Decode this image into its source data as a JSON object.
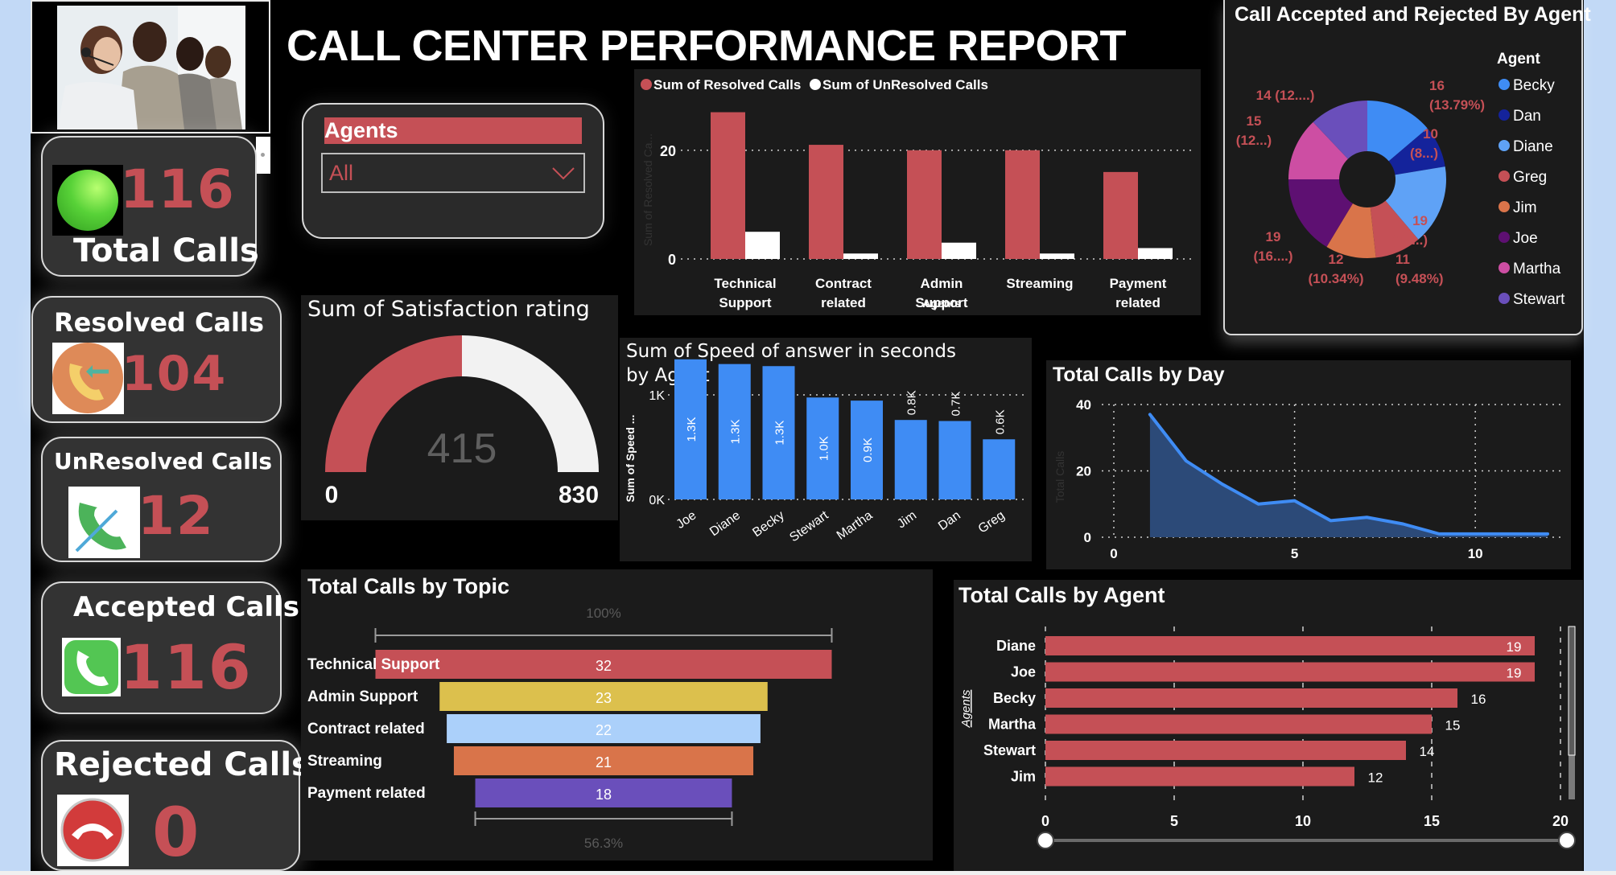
{
  "header": {
    "title": "CALL CENTER PERFORMANCE REPORT",
    "photo": "call-center-agents-photo"
  },
  "kpis": {
    "total": {
      "label": "Total Calls",
      "value": "116",
      "icon": "green-status-orb-icon"
    },
    "resolved": {
      "label": "Resolved Calls",
      "value": "104",
      "icon": "incoming-call-icon"
    },
    "unresolved": {
      "label": "UnResolved Calls",
      "value": "12",
      "icon": "missed-call-icon"
    },
    "accepted": {
      "label": "Accepted Calls",
      "value": "116",
      "icon": "phone-accept-icon"
    },
    "rejected": {
      "label": "Rejected Calls",
      "value": "0",
      "icon": "phone-hangup-icon"
    }
  },
  "slicer": {
    "title": "Agents",
    "selected": "All"
  },
  "colors": {
    "accent_red": "#c55056",
    "blue": "#3f8cf4",
    "bg_panel": "#1b1b1b"
  },
  "chart_data": [
    {
      "id": "resolved_by_topic",
      "type": "bar",
      "title": "",
      "legend": [
        "Sum of Resolved Calls",
        "Sum of UnResolved Calls"
      ],
      "legend_position": "top-left",
      "categories": [
        "Technical Support",
        "Contract related",
        "Admin Support",
        "Streaming",
        "Payment related"
      ],
      "category_lines": [
        [
          "Technical",
          "Support"
        ],
        [
          "Contract",
          "related"
        ],
        [
          "Admin",
          "Support"
        ],
        [
          "Streaming"
        ],
        [
          "Payment",
          "related"
        ]
      ],
      "xlabel": "Agents",
      "ylabel": "Sum of Resolved Ca...",
      "yticks": [
        "0",
        "20"
      ],
      "ylim": [
        0,
        29
      ],
      "series": [
        {
          "name": "Sum of Resolved Calls",
          "color": "#c55056",
          "values": [
            27,
            21,
            20,
            20,
            16
          ]
        },
        {
          "name": "Sum of UnResolved Calls",
          "color": "#ffffff",
          "values": [
            5,
            1,
            3,
            1,
            2
          ]
        }
      ]
    },
    {
      "id": "accepted_rejected_by_agent",
      "type": "pie",
      "title": "Call Accepted and Rejected By Agent",
      "legend_title": "Agent",
      "legend_position": "right",
      "labels": [
        "Becky",
        "Dan",
        "Diane",
        "Greg",
        "Jim",
        "Joe",
        "Martha",
        "Stewart"
      ],
      "values": [
        16,
        10,
        19,
        11,
        12,
        19,
        15,
        14
      ],
      "colors": [
        "#3f8cf4",
        "#14239b",
        "#5fa2f6",
        "#c55056",
        "#d9744a",
        "#5e1072",
        "#cd4ea3",
        "#6a4fbb"
      ],
      "data_labels": [
        [
          "16",
          "(13.79%)"
        ],
        [
          "10",
          "(8...)"
        ],
        [
          "19",
          "(16...)"
        ],
        [
          "11",
          "(9.48%)"
        ],
        [
          "12",
          "(10.34%)"
        ],
        [
          "19",
          "(16....)"
        ],
        [
          "15",
          "(12...)"
        ],
        [
          "14 (12....)"
        ]
      ]
    },
    {
      "id": "satisfaction_gauge",
      "type": "gauge",
      "title": "Sum of Satisfaction rating",
      "value": 415,
      "min": 0,
      "max": 830,
      "value_label": "415",
      "min_label": "0",
      "max_label": "830"
    },
    {
      "id": "speed_by_agent",
      "type": "bar",
      "title": "Sum of Speed of answer in seconds by Agent",
      "ylabel": "Sum of Speed ...",
      "categories": [
        "Joe",
        "Diane",
        "Becky",
        "Stewart",
        "Martha",
        "Jim",
        "Dan",
        "Greg"
      ],
      "values": [
        1340,
        1295,
        1275,
        975,
        945,
        760,
        750,
        575
      ],
      "data_labels": [
        "1.3K",
        "1.3K",
        "1.3K",
        "1.0K",
        "0.9K",
        "0.8K",
        "0.7K",
        "0.6K"
      ],
      "yticks": [
        "0K",
        "1K"
      ],
      "ylim": [
        0,
        1500
      ]
    },
    {
      "id": "calls_by_day",
      "type": "area",
      "title": "Total Calls by Day",
      "ylabel": "Total Calls",
      "x": [
        1,
        2,
        3,
        4,
        5,
        6,
        7,
        8,
        9,
        10,
        11,
        12
      ],
      "y": [
        37,
        23,
        16,
        10,
        11,
        5,
        6,
        4,
        1,
        1,
        1,
        1
      ],
      "xticks": [
        "0",
        "5",
        "10"
      ],
      "yticks": [
        "0",
        "20",
        "40"
      ],
      "xlim": [
        0,
        12.2
      ],
      "ylim": [
        0,
        40
      ]
    },
    {
      "id": "calls_by_topic",
      "type": "funnel",
      "title": "Total Calls by Topic",
      "categories": [
        "Technical Support",
        "Admin Support",
        "Contract related",
        "Streaming",
        "Payment related"
      ],
      "values": [
        32,
        23,
        22,
        21,
        18
      ],
      "colors": [
        "#c55056",
        "#dcc04d",
        "#abd0fa",
        "#d9744a",
        "#6a4fbb"
      ],
      "top_label": "100%",
      "bottom_label": "56.3%"
    },
    {
      "id": "calls_by_agent",
      "type": "bar",
      "orientation": "horizontal",
      "title": "Total Calls by Agent",
      "ylabel": "Agents",
      "categories": [
        "Diane",
        "Joe",
        "Becky",
        "Martha",
        "Stewart",
        "Jim"
      ],
      "values": [
        19,
        19,
        16,
        15,
        14,
        12
      ],
      "xticks": [
        "0",
        "5",
        "10",
        "15",
        "20"
      ],
      "xlim": [
        0,
        20
      ]
    }
  ]
}
